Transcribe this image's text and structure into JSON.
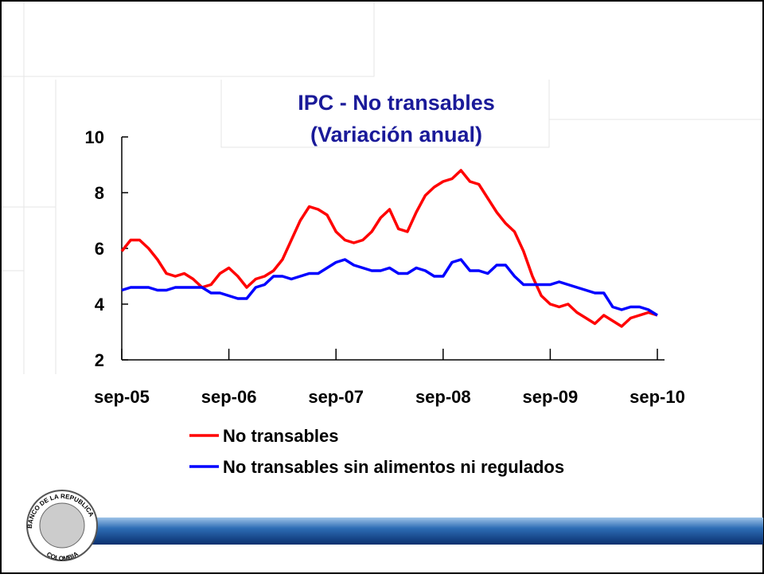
{
  "chart_data": {
    "type": "line",
    "title": "IPC - No transables",
    "subtitle": "(Variación anual)",
    "categories": [
      "sep-05",
      null,
      null,
      null,
      null,
      null,
      null,
      null,
      null,
      null,
      null,
      null,
      "sep-06",
      null,
      null,
      null,
      null,
      null,
      null,
      null,
      null,
      null,
      null,
      null,
      "sep-07",
      null,
      null,
      null,
      null,
      null,
      null,
      null,
      null,
      null,
      null,
      null,
      "sep-08",
      null,
      null,
      null,
      null,
      null,
      null,
      null,
      null,
      null,
      null,
      null,
      "sep-09",
      null,
      null,
      null,
      null,
      null,
      null,
      null,
      null,
      null,
      null,
      null,
      "sep-10"
    ],
    "series": [
      {
        "name": "No transables",
        "color": "#ff0000",
        "values": [
          5.9,
          6.3,
          6.3,
          6.0,
          5.6,
          5.1,
          5.0,
          5.1,
          4.9,
          4.6,
          4.7,
          5.1,
          5.3,
          5.0,
          4.6,
          4.9,
          5.0,
          5.2,
          5.6,
          6.3,
          7.0,
          7.5,
          7.4,
          7.2,
          6.6,
          6.3,
          6.2,
          6.3,
          6.6,
          7.1,
          7.4,
          6.7,
          6.6,
          7.3,
          7.9,
          8.2,
          8.4,
          8.5,
          8.8,
          8.4,
          8.3,
          7.8,
          7.3,
          6.9,
          6.6,
          5.9,
          5.0,
          4.3,
          4.0,
          3.9,
          4.0,
          3.7,
          3.5,
          3.3,
          3.6,
          3.4,
          3.2,
          3.5,
          3.6,
          3.7,
          3.6
        ]
      },
      {
        "name": "No transables sin alimentos ni regulados",
        "color": "#0000ff",
        "values": [
          4.5,
          4.6,
          4.6,
          4.6,
          4.5,
          4.5,
          4.6,
          4.6,
          4.6,
          4.6,
          4.4,
          4.4,
          4.3,
          4.2,
          4.2,
          4.6,
          4.7,
          5.0,
          5.0,
          4.9,
          5.0,
          5.1,
          5.1,
          5.3,
          5.5,
          5.6,
          5.4,
          5.3,
          5.2,
          5.2,
          5.3,
          5.1,
          5.1,
          5.3,
          5.2,
          5.0,
          5.0,
          5.5,
          5.6,
          5.2,
          5.2,
          5.1,
          5.4,
          5.4,
          5.0,
          4.7,
          4.7,
          4.7,
          4.7,
          4.8,
          4.7,
          4.6,
          4.5,
          4.4,
          4.4,
          3.9,
          3.8,
          3.9,
          3.9,
          3.8,
          3.6
        ]
      }
    ],
    "ylim": [
      2,
      10
    ],
    "yticks": [
      2,
      4,
      6,
      8,
      10
    ]
  },
  "logo": {
    "top": "BANCO DE LA REPUBLICA",
    "bottom": "COLOMBIA"
  }
}
